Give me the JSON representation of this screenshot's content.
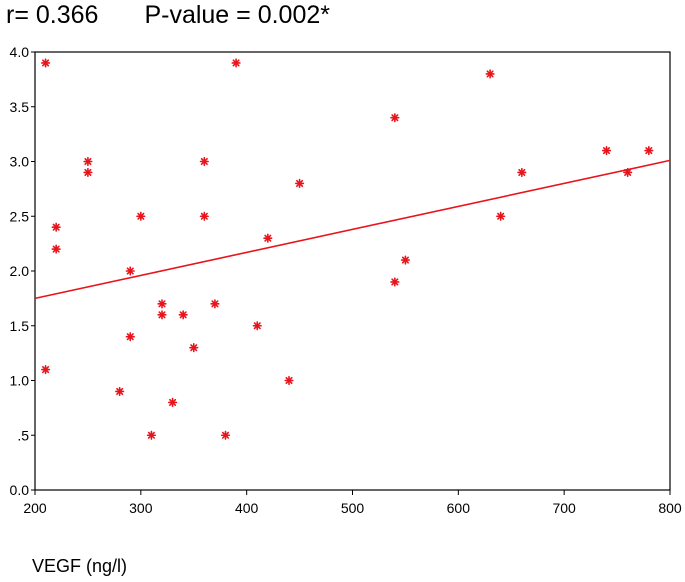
{
  "chart_data": {
    "type": "scatter",
    "title": "r= 0.366",
    "subtitle": "P-value = 0.002*",
    "xlabel": "VEGF (ng/l)",
    "ylabel": "",
    "xlim": [
      200,
      800
    ],
    "ylim": [
      0,
      4
    ],
    "x_ticks": [
      200,
      300,
      400,
      500,
      600,
      700,
      800
    ],
    "x_tick_labels": [
      "200",
      "300",
      "400",
      "500",
      "600",
      "700",
      "800"
    ],
    "y_ticks": [
      0,
      0.5,
      1,
      1.5,
      2,
      2.5,
      3,
      3.5,
      4
    ],
    "y_tick_labels": [
      "0.0",
      ".5",
      "1.0",
      "1.5",
      "2.0",
      "2.5",
      "3.0",
      "3.5",
      "4.0"
    ],
    "grid": false,
    "marker": "asterisk",
    "marker_color": "#e8141c",
    "trendline": {
      "x": [
        200,
        800
      ],
      "y": [
        1.75,
        3.01
      ],
      "color": "#e8141c"
    },
    "points": [
      [
        210,
        3.9
      ],
      [
        210,
        1.1
      ],
      [
        220,
        2.4
      ],
      [
        220,
        2.2
      ],
      [
        250,
        3.0
      ],
      [
        250,
        2.9
      ],
      [
        280,
        0.9
      ],
      [
        290,
        2.0
      ],
      [
        290,
        1.4
      ],
      [
        300,
        2.5
      ],
      [
        310,
        0.5
      ],
      [
        320,
        1.7
      ],
      [
        320,
        1.6
      ],
      [
        330,
        0.8
      ],
      [
        340,
        1.6
      ],
      [
        350,
        1.3
      ],
      [
        360,
        3.0
      ],
      [
        360,
        2.5
      ],
      [
        370,
        1.7
      ],
      [
        380,
        0.5
      ],
      [
        390,
        3.9
      ],
      [
        410,
        1.5
      ],
      [
        420,
        2.3
      ],
      [
        440,
        1.0
      ],
      [
        450,
        2.8
      ],
      [
        540,
        3.4
      ],
      [
        540,
        1.9
      ],
      [
        550,
        2.1
      ],
      [
        630,
        3.8
      ],
      [
        640,
        2.5
      ],
      [
        660,
        2.9
      ],
      [
        740,
        3.1
      ],
      [
        760,
        2.9
      ],
      [
        780,
        3.1
      ]
    ]
  }
}
